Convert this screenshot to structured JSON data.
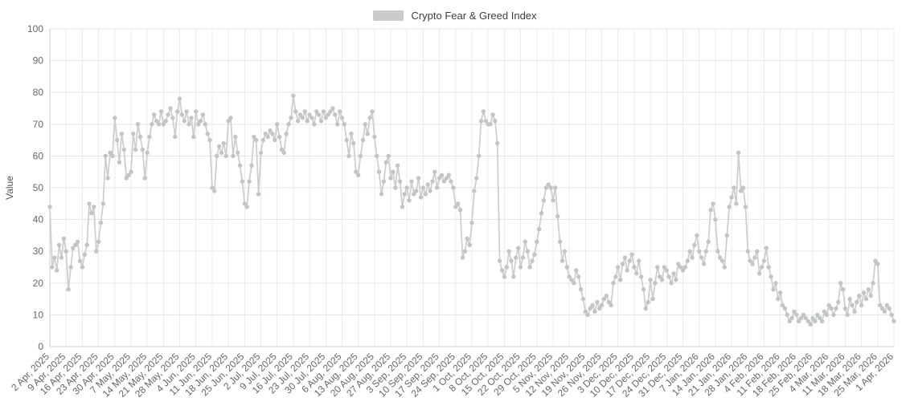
{
  "legend": {
    "label": "Crypto Fear & Greed Index",
    "swatch_color": "#cbcbcb"
  },
  "colors": {
    "line": "#cbcdce",
    "marker": "#c2c5c6",
    "grid_h": "#e4e4e4",
    "grid_v": "#ececec",
    "axis": "#cccccc",
    "tick_text": "#666666"
  },
  "y_axis": {
    "title": "Value",
    "min": 0,
    "max": 100,
    "tick_interval": 10,
    "ticks": [
      0,
      10,
      20,
      30,
      40,
      50,
      60,
      70,
      80,
      90,
      100
    ]
  },
  "chart_data": {
    "type": "line",
    "title": "Crypto Fear & Greed Index",
    "xlabel": "",
    "ylabel": "Value",
    "ylim": [
      0,
      100
    ],
    "grid": true,
    "legend_position": "top-center",
    "x_unit": "day",
    "x_start": "2 Apr, 2025",
    "x_end": "1 Apr, 2026",
    "tick_every_days": 7,
    "x_tick_labels": [
      "2 Apr, 2025",
      "9 Apr, 2025",
      "16 Apr, 2025",
      "23 Apr, 2025",
      "30 Apr, 2025",
      "7 May, 2025",
      "14 May, 2025",
      "21 May, 2025",
      "28 May, 2025",
      "4 Jun, 2025",
      "11 Jun, 2025",
      "18 Jun, 2025",
      "25 Jun, 2025",
      "2 Jul, 2025",
      "9 Jul, 2025",
      "16 Jul, 2025",
      "23 Jul, 2025",
      "30 Jul, 2025",
      "6 Aug, 2025",
      "13 Aug, 2025",
      "20 Aug, 2025",
      "27 Aug, 2025",
      "3 Sep, 2025",
      "10 Sep, 2025",
      "17 Sep, 2025",
      "24 Sep, 2025",
      "1 Oct, 2025",
      "8 Oct, 2025",
      "15 Oct, 2025",
      "22 Oct, 2025",
      "29 Oct, 2025",
      "5 Nov, 2025",
      "12 Nov, 2025",
      "19 Nov, 2025",
      "26 Nov, 2025",
      "3 Dec, 2025",
      "10 Dec, 2025",
      "17 Dec, 2025",
      "24 Dec, 2025",
      "31 Dec, 2025",
      "7 Jan, 2026",
      "14 Jan, 2026",
      "21 Jan, 2026",
      "28 Jan, 2026",
      "4 Feb, 2026",
      "11 Feb, 2026",
      "18 Feb, 2026",
      "25 Feb, 2026",
      "4 Mar, 2026",
      "11 Mar, 2026",
      "18 Mar, 2026",
      "25 Mar, 2026",
      "1 Apr, 2026"
    ],
    "series": [
      {
        "name": "Crypto Fear & Greed Index",
        "color": "#cbcdce",
        "marker_color": "#c2c5c6",
        "values": [
          44,
          25,
          28,
          24,
          32,
          28,
          34,
          30,
          18,
          25,
          31,
          32,
          33,
          27,
          25,
          29,
          32,
          45,
          42,
          44,
          30,
          33,
          39,
          45,
          60,
          53,
          61,
          60,
          72,
          65,
          58,
          67,
          62,
          53,
          54,
          55,
          67,
          62,
          70,
          66,
          62,
          53,
          61,
          66,
          70,
          73,
          71,
          70,
          74,
          70,
          71,
          73,
          75,
          72,
          66,
          74,
          78,
          73,
          71,
          74,
          70,
          72,
          66,
          74,
          70,
          71,
          73,
          70,
          67,
          65,
          50,
          49,
          60,
          63,
          61,
          64,
          60,
          71,
          72,
          60,
          66,
          61,
          57,
          52,
          45,
          44,
          52,
          57,
          66,
          65,
          48,
          61,
          65,
          67,
          66,
          68,
          67,
          65,
          70,
          66,
          62,
          61,
          67,
          70,
          72,
          79,
          74,
          71,
          73,
          72,
          74,
          71,
          73,
          72,
          70,
          74,
          73,
          71,
          74,
          72,
          73,
          74,
          75,
          73,
          70,
          74,
          72,
          70,
          65,
          60,
          67,
          64,
          55,
          54,
          60,
          65,
          70,
          67,
          72,
          74,
          66,
          60,
          55,
          48,
          52,
          58,
          60,
          53,
          55,
          50,
          57,
          52,
          44,
          48,
          50,
          46,
          52,
          48,
          49,
          53,
          47,
          50,
          48,
          51,
          49,
          52,
          55,
          50,
          53,
          54,
          52,
          53,
          54,
          52,
          50,
          44,
          45,
          43,
          28,
          30,
          34,
          32,
          39,
          49,
          53,
          60,
          71,
          74,
          71,
          70,
          70,
          73,
          71,
          64,
          27,
          24,
          22,
          25,
          30,
          27,
          22,
          28,
          31,
          25,
          28,
          33,
          30,
          25,
          27,
          29,
          33,
          37,
          42,
          46,
          50,
          51,
          50,
          46,
          50,
          41,
          33,
          27,
          30,
          25,
          22,
          21,
          20,
          24,
          22,
          18,
          15,
          11,
          10,
          12,
          13,
          11,
          14,
          12,
          13,
          15,
          16,
          14,
          13,
          20,
          22,
          25,
          21,
          26,
          28,
          24,
          27,
          29,
          25,
          23,
          27,
          22,
          18,
          12,
          14,
          21,
          15,
          20,
          25,
          22,
          21,
          25,
          24,
          22,
          20,
          23,
          21,
          26,
          25,
          24,
          25,
          27,
          30,
          28,
          32,
          35,
          30,
          28,
          26,
          30,
          33,
          43,
          45,
          40,
          30,
          28,
          27,
          25,
          35,
          44,
          47,
          50,
          45,
          61,
          49,
          50,
          44,
          30,
          27,
          26,
          28,
          30,
          23,
          25,
          27,
          31,
          25,
          22,
          18,
          20,
          15,
          17,
          13,
          12,
          10,
          8,
          9,
          11,
          10,
          8,
          9,
          10,
          9,
          8,
          7,
          9,
          8,
          10,
          9,
          8,
          11,
          10,
          13,
          12,
          10,
          12,
          14,
          20,
          18,
          12,
          10,
          15,
          13,
          11,
          14,
          16,
          13,
          17,
          15,
          18,
          16,
          20,
          27,
          26,
          13,
          12,
          11,
          13,
          12,
          10,
          8
        ]
      }
    ]
  }
}
